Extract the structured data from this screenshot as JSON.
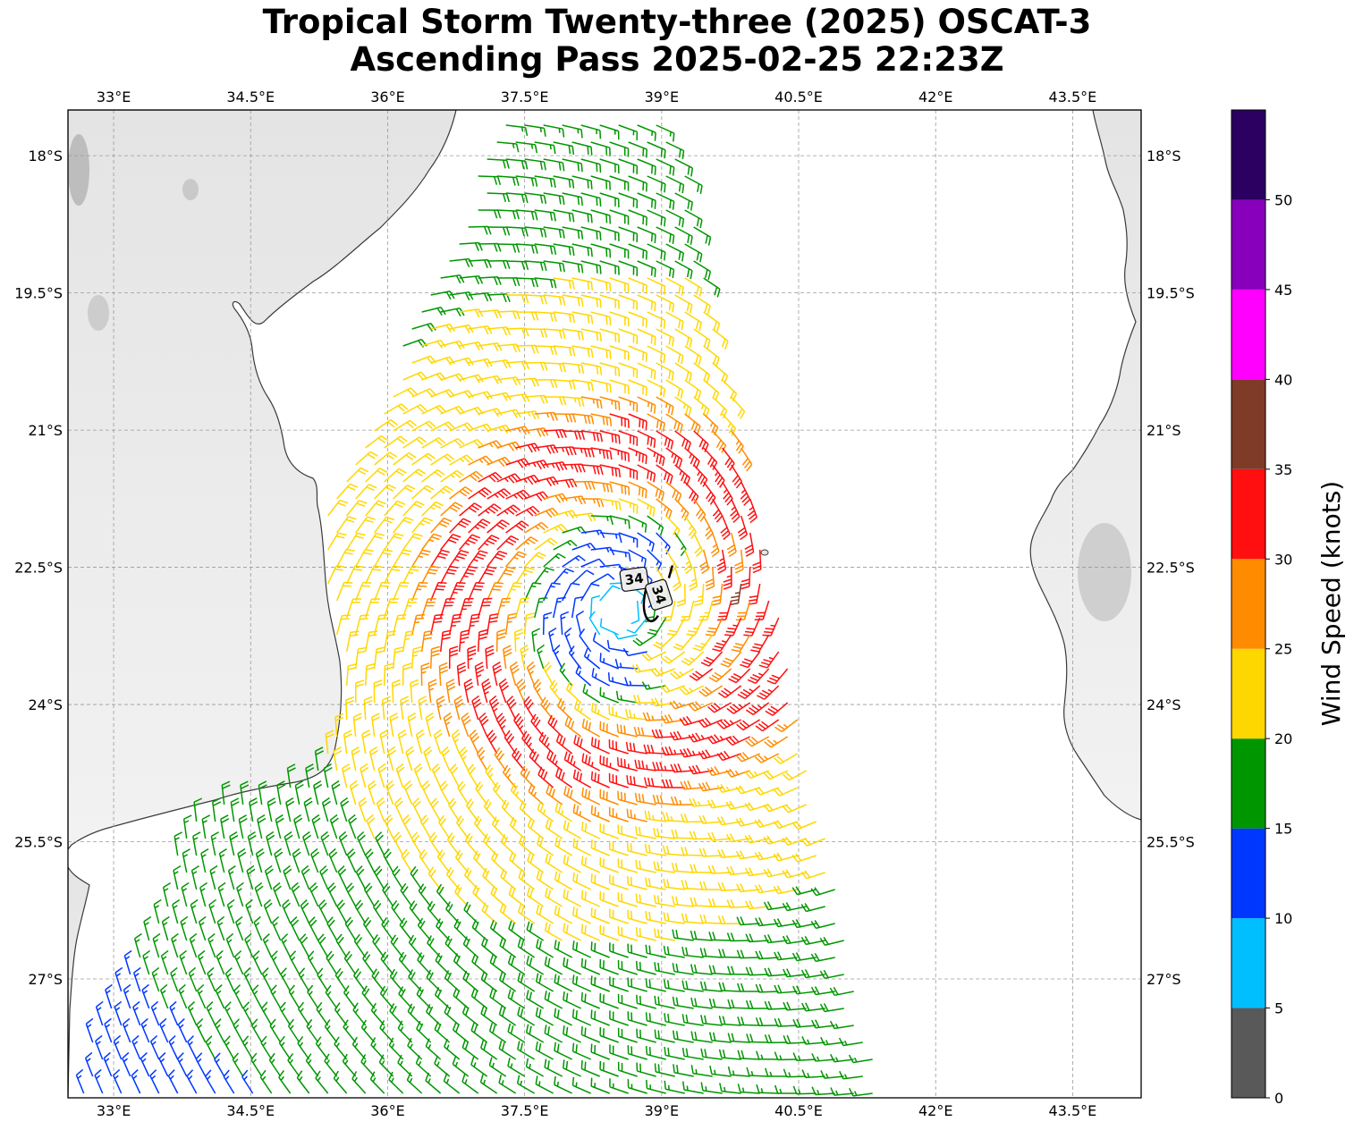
{
  "title": {
    "line1": "Tropical Storm Twenty-three (2025) OSCAT-3",
    "line2": "Ascending Pass 2025-02-25 22:23Z"
  },
  "map": {
    "lon_range": [
      32.5,
      44.25
    ],
    "lat_range": [
      -28.3,
      -17.5
    ],
    "lon_ticks": [
      {
        "value": 33.0,
        "label": "33°E"
      },
      {
        "value": 34.5,
        "label": "34.5°E"
      },
      {
        "value": 36.0,
        "label": "36°E"
      },
      {
        "value": 37.5,
        "label": "37.5°E"
      },
      {
        "value": 39.0,
        "label": "39°E"
      },
      {
        "value": 40.5,
        "label": "40.5°E"
      },
      {
        "value": 42.0,
        "label": "42°E"
      },
      {
        "value": 43.5,
        "label": "43.5°E"
      }
    ],
    "lat_ticks": [
      {
        "value": -18.0,
        "label": "18°S"
      },
      {
        "value": -19.5,
        "label": "19.5°S"
      },
      {
        "value": -21.0,
        "label": "21°S"
      },
      {
        "value": -22.5,
        "label": "22.5°S"
      },
      {
        "value": -24.0,
        "label": "24°S"
      },
      {
        "value": -25.5,
        "label": "25.5°S"
      },
      {
        "value": -27.0,
        "label": "27°S"
      }
    ],
    "grid": true,
    "storm_center": {
      "lon": 38.55,
      "lat": -22.95
    },
    "swath_corners": [
      [
        37.3,
        -17.5
      ],
      [
        39.1,
        -17.5
      ],
      [
        41.4,
        -28.3
      ],
      [
        32.5,
        -28.3
      ]
    ],
    "wind_radii_labels": [
      {
        "text": "34",
        "lon": 38.7,
        "lat": -22.63,
        "rotation": -8
      },
      {
        "text": "34",
        "lon": 38.97,
        "lat": -22.8,
        "rotation": 72
      }
    ]
  },
  "colorbar": {
    "label": "Wind Speed (knots)",
    "bins": [
      {
        "min": 0,
        "max": 5,
        "color": "#595959"
      },
      {
        "min": 5,
        "max": 10,
        "color": "#00bfff"
      },
      {
        "min": 10,
        "max": 15,
        "color": "#0037ff"
      },
      {
        "min": 15,
        "max": 20,
        "color": "#009600"
      },
      {
        "min": 20,
        "max": 25,
        "color": "#ffd700"
      },
      {
        "min": 25,
        "max": 30,
        "color": "#ff8c00"
      },
      {
        "min": 30,
        "max": 35,
        "color": "#ff0f0f"
      },
      {
        "min": 35,
        "max": 40,
        "color": "#7f3b28"
      },
      {
        "min": 40,
        "max": 45,
        "color": "#ff00ff"
      },
      {
        "min": 45,
        "max": 50,
        "color": "#8800bb"
      },
      {
        "min": 50,
        "max": 55,
        "color": "#2c0060"
      }
    ],
    "tick_labels": [
      "0",
      "5",
      "10",
      "15",
      "20",
      "25",
      "30",
      "35",
      "40",
      "45",
      "50"
    ]
  }
}
